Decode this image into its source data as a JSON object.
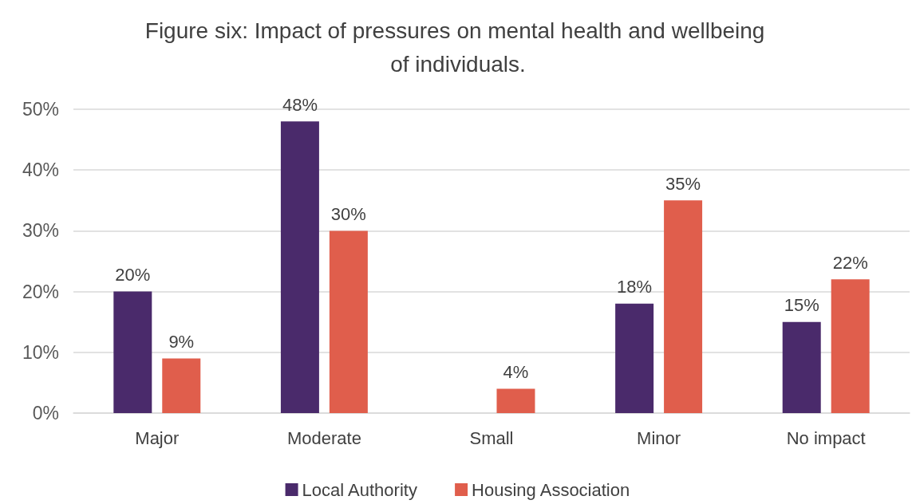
{
  "chart_data": {
    "type": "bar",
    "title": "Figure six: Impact of pressures on mental health and wellbeing of individuals.",
    "categories": [
      "Major",
      "Moderate",
      "Small",
      "Minor",
      "No impact"
    ],
    "series": [
      {
        "name": "Local Authority",
        "color": "#4a2a6b",
        "values": [
          20,
          48,
          null,
          18,
          15
        ],
        "value_labels": [
          "20%",
          "48%",
          null,
          "18%",
          "15%"
        ]
      },
      {
        "name": "Housing Association",
        "color": "#e05e4c",
        "values": [
          9,
          30,
          4,
          35,
          22
        ],
        "value_labels": [
          "9%",
          "30%",
          "4%",
          "35%",
          "22%"
        ]
      }
    ],
    "ylim": [
      0,
      50
    ],
    "yticks": [
      {
        "value": 0,
        "label": "0%"
      },
      {
        "value": 10,
        "label": "10%"
      },
      {
        "value": 20,
        "label": "20%"
      },
      {
        "value": 30,
        "label": "30%"
      },
      {
        "value": 40,
        "label": "40%"
      },
      {
        "value": 50,
        "label": "50%"
      }
    ],
    "grid": "y",
    "legend": "bottom"
  }
}
